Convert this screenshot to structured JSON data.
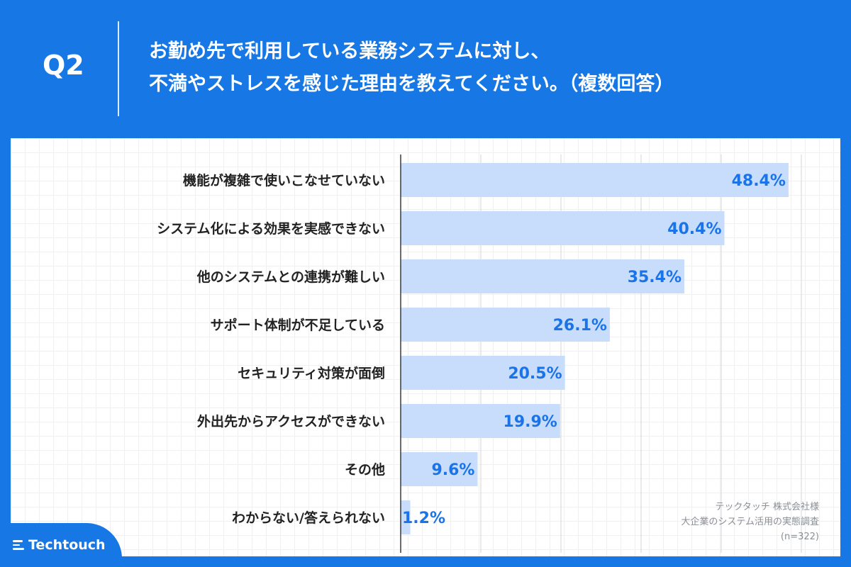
{
  "header": {
    "question_number": "Q2",
    "question_line1": "お勤め先で利用している業務システムに対し、",
    "question_line2": "不満やストレスを感じた理由を教えてください。（複数回答）"
  },
  "chart_data": {
    "type": "bar",
    "orientation": "horizontal",
    "categories": [
      "機能が複雑で使いこなせていない",
      "システム化による効果を実感できない",
      "他のシステムとの連携が難しい",
      "サポート体制が不足している",
      "セキュリティ対策が面倒",
      "外出先からアクセスができない",
      "その他",
      "わからない/答えられない"
    ],
    "values": [
      48.4,
      40.4,
      35.4,
      26.1,
      20.5,
      19.9,
      9.6,
      1.2
    ],
    "value_labels": [
      "48.4%",
      "40.4%",
      "35.4%",
      "26.1%",
      "20.5%",
      "19.9%",
      "9.6%",
      "1.2%"
    ],
    "unit": "%",
    "xlim": [
      0,
      50
    ],
    "grid": "vertical",
    "bar_color": "#c7ddfb",
    "value_color": "#1a73e8"
  },
  "source": {
    "line1": "テックタッチ 株式会社様",
    "line2": "大企業のシステム活用の実態調査",
    "line3": "(n=322)"
  },
  "logo": {
    "text": "Techtouch",
    "icon": "techtouch-logo-icon"
  },
  "colors": {
    "brand": "#1677e5",
    "panel": "#ffffff"
  }
}
